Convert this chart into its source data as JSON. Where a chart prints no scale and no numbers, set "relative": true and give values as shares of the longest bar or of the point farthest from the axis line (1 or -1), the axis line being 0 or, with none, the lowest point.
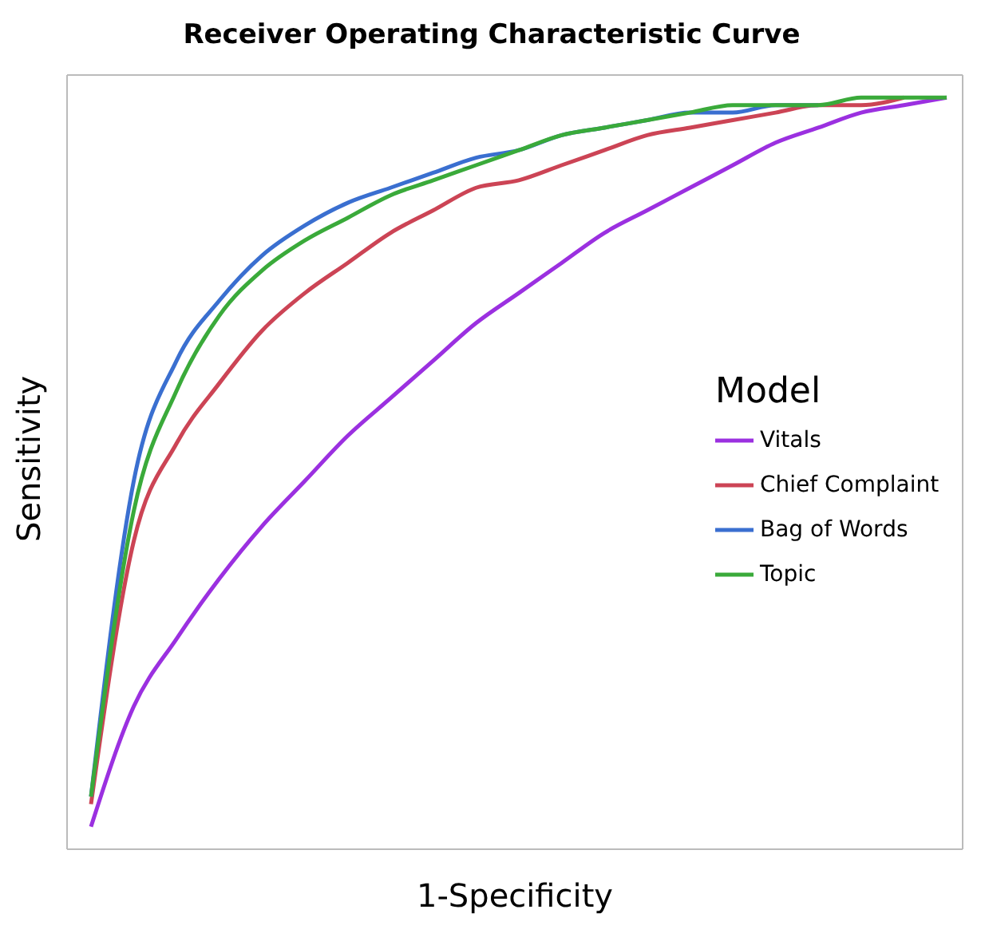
{
  "chart_data": {
    "type": "line",
    "title": "Receiver Operating Characteristic Curve",
    "xlabel": "1-Specificity",
    "ylabel": "Sensitivity",
    "legend_title": "Model",
    "relative": true,
    "legend": "right",
    "marker": "none",
    "line_style": "solid",
    "categories": [
      null,
      null,
      null,
      null,
      null,
      null,
      null,
      null,
      null,
      null,
      null,
      null,
      null,
      null,
      null,
      null,
      null,
      null,
      null,
      null,
      null
    ],
    "series": [
      {
        "name": "Vitals",
        "color": "#9b30e0",
        "values": [
          0.03,
          0.19,
          0.28,
          0.36,
          0.43,
          0.49,
          0.55,
          0.6,
          0.65,
          0.7,
          0.74,
          0.78,
          0.82,
          0.85,
          0.88,
          0.91,
          0.94,
          0.96,
          0.98,
          0.99,
          1
        ]
      },
      {
        "name": "Chief Complaint",
        "color": "#cc4455",
        "values": [
          0.06,
          0.41,
          0.54,
          0.62,
          0.69,
          0.74,
          0.78,
          0.82,
          0.85,
          0.88,
          0.89,
          0.91,
          0.93,
          0.95,
          0.96,
          0.97,
          0.98,
          0.99,
          0.99,
          1,
          null
        ]
      },
      {
        "name": "Bag of Words",
        "color": "#3a6fd0",
        "values": [
          0.07,
          0.49,
          0.65,
          0.73,
          0.79,
          0.83,
          0.86,
          0.88,
          0.9,
          0.92,
          0.93,
          0.95,
          0.96,
          0.97,
          0.98,
          0.98,
          0.99,
          0.99,
          null,
          null,
          null
        ]
      },
      {
        "name": "Topic",
        "color": "#3aaa3a",
        "values": [
          0.07,
          0.45,
          0.61,
          0.71,
          0.77,
          0.81,
          0.84,
          0.87,
          0.89,
          0.91,
          0.93,
          0.95,
          0.96,
          0.97,
          0.98,
          0.99,
          0.99,
          0.99,
          1,
          1,
          1
        ]
      }
    ]
  }
}
